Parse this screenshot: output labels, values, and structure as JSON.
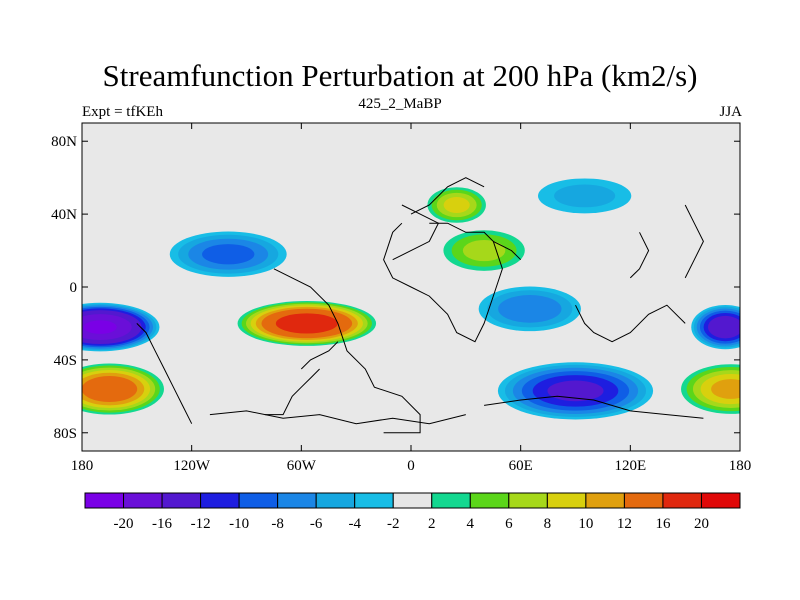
{
  "header": {
    "title": "Streamfunction Perturbation at 200 hPa (km2/s)",
    "left_string": "Expt = tfKEh",
    "center_string": "425_2_MaBP",
    "right_string": "JJA"
  },
  "chart_data": {
    "type": "heatmap",
    "title": "Streamfunction Perturbation at 200 hPa (km2/s)",
    "xlabel": "",
    "ylabel": "",
    "xlim": [
      -180,
      180
    ],
    "ylim": [
      -90,
      90
    ],
    "x_ticks": [
      {
        "value": -180,
        "label": "180"
      },
      {
        "value": -120,
        "label": "120W"
      },
      {
        "value": -60,
        "label": "60W"
      },
      {
        "value": 0,
        "label": "0"
      },
      {
        "value": 60,
        "label": "60E"
      },
      {
        "value": 120,
        "label": "120E"
      },
      {
        "value": 180,
        "label": "180"
      }
    ],
    "y_ticks": [
      {
        "value": 80,
        "label": "80N"
      },
      {
        "value": 40,
        "label": "40N"
      },
      {
        "value": 0,
        "label": "0"
      },
      {
        "value": -40,
        "label": "40S"
      },
      {
        "value": -80,
        "label": "80S"
      }
    ],
    "colorbar": {
      "labels": [
        "-20",
        "-16",
        "-12",
        "-10",
        "-8",
        "-6",
        "-4",
        "-2",
        "2",
        "4",
        "6",
        "8",
        "10",
        "12",
        "16",
        "20"
      ],
      "colors": [
        "#7a00e6",
        "#6a0fd8",
        "#5318cf",
        "#1e1ee0",
        "#0f5ee6",
        "#1b86e6",
        "#16a7e0",
        "#18bde6",
        "#e6e6e6",
        "#13d890",
        "#5bd61a",
        "#a6d81a",
        "#d8d00e",
        "#e0a00e",
        "#e46a0e",
        "#e0280e",
        "#e00808"
      ],
      "background": "#e8e8e8"
    },
    "features": [
      {
        "name": "positive",
        "lon": -57,
        "lat": -20,
        "rx": 40,
        "ry": 13,
        "peak": 18
      },
      {
        "name": "negative",
        "lon": -170,
        "lat": -22,
        "rx": 34,
        "ry": 14,
        "peak": -20
      },
      {
        "name": "negative",
        "lon": 172,
        "lat": -22,
        "rx": 20,
        "ry": 13,
        "peak": -14
      },
      {
        "name": "positive",
        "lon": -165,
        "lat": -56,
        "rx": 32,
        "ry": 15,
        "peak": 14
      },
      {
        "name": "positive",
        "lon": 175,
        "lat": -56,
        "rx": 30,
        "ry": 15,
        "peak": 10
      },
      {
        "name": "negative",
        "lon": 90,
        "lat": -57,
        "rx": 46,
        "ry": 17,
        "peak": -12
      },
      {
        "name": "negative",
        "lon": -100,
        "lat": 18,
        "rx": 36,
        "ry": 14,
        "peak": -8
      },
      {
        "name": "positive",
        "lon": 25,
        "lat": 45,
        "rx": 18,
        "ry": 11,
        "peak": 8
      },
      {
        "name": "positive",
        "lon": 40,
        "lat": 20,
        "rx": 26,
        "ry": 13,
        "peak": 6
      },
      {
        "name": "negative",
        "lon": 65,
        "lat": -12,
        "rx": 32,
        "ry": 14,
        "peak": -7
      },
      {
        "name": "negative",
        "lon": 95,
        "lat": 50,
        "rx": 32,
        "ry": 12,
        "peak": -4
      }
    ]
  }
}
